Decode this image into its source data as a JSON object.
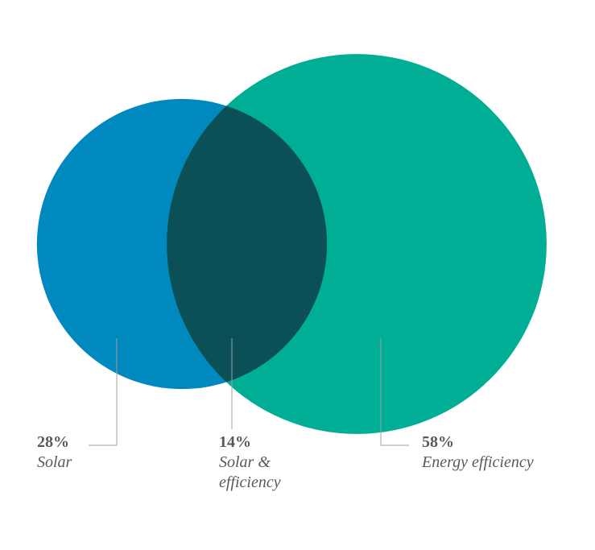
{
  "chart_data": {
    "type": "venn",
    "categories": [
      "Solar",
      "Solar & efficiency",
      "Energy efficiency"
    ],
    "values": [
      28,
      14,
      58
    ],
    "value_labels": [
      "28%",
      "14%",
      "58%"
    ],
    "colors": [
      "#0089bf",
      "#0b5057",
      "#00ae96"
    ]
  }
}
